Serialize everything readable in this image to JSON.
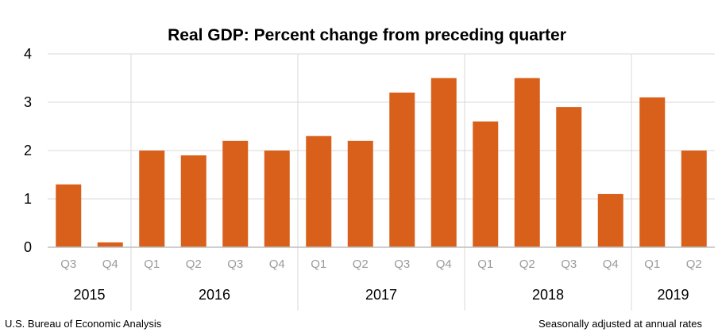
{
  "chart_data": {
    "type": "bar",
    "title": "Real GDP:  Percent change from preceding quarter",
    "xlabel": "",
    "ylabel": "",
    "ylim": [
      0,
      4
    ],
    "yticks": [
      "0",
      "1",
      "2",
      "3",
      "4"
    ],
    "categories": [
      "Q3",
      "Q4",
      "Q1",
      "Q2",
      "Q3",
      "Q4",
      "Q1",
      "Q2",
      "Q3",
      "Q4",
      "Q1",
      "Q2",
      "Q3",
      "Q4",
      "Q1",
      "Q2"
    ],
    "years": [
      {
        "label": "2015",
        "span": 2
      },
      {
        "label": "2016",
        "span": 4
      },
      {
        "label": "2017",
        "span": 4
      },
      {
        "label": "2018",
        "span": 4
      },
      {
        "label": "2019",
        "span": 2
      }
    ],
    "values": [
      1.3,
      0.1,
      2.0,
      1.9,
      2.2,
      2.0,
      2.3,
      2.2,
      3.2,
      3.5,
      2.6,
      3.5,
      2.9,
      1.1,
      3.1,
      2.0
    ],
    "bar_color": "#d9601a",
    "grid": true
  },
  "footer": {
    "source": "U.S. Bureau of Economic Analysis",
    "note": "Seasonally adjusted at annual rates"
  }
}
